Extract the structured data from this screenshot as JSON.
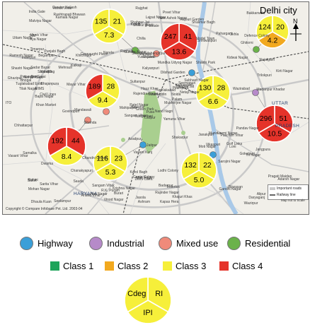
{
  "map": {
    "city_label": "Delhi city",
    "north_label": "N",
    "copyright": "Copyright © Compare Infobase Pvt. Ltd. 2003-04",
    "legend_important_roads": "Important roads",
    "legend_railway_line": "Railway line",
    "scale_note": "Map not to Scale",
    "places_big": [
      "HARYANA",
      "UTTAR",
      "PRADESH"
    ],
    "places": [
      "Ladpur",
      "Begampur",
      "Bawana",
      "Rohini",
      "Pitampura",
      "Shalimar Bagh",
      "Jahangirpuri",
      "Model Town",
      "Mukherjee Nagar",
      "Kamala Nagar",
      "Civil Lines",
      "Sangam Vihar",
      "Shastri Park",
      "Seelampur",
      "Shahdara",
      "Dilshad Garden",
      "Mohan Nagar",
      "Sauda",
      "Mundka",
      "Nangloi Jat",
      "Paschim Vihar",
      "Punjabi Bagh",
      "Shakur Basti",
      "Tilak Nagar",
      "Janakpuri",
      "Kirti Nagar",
      "Patel Nagar",
      "Karol Bagh",
      "Rajendra Nagar",
      "Connaught Place",
      "Paharganj",
      "Chandni Chowk",
      "Daryaganj",
      "Pragati Maidan",
      "Laxmi Nagar",
      "Preet Vihar",
      "Mayur Vihar",
      "Anand Vihar",
      "Ghazipur",
      "Noida",
      "Dhaula Kuan",
      "Delhi Cantt.",
      "Palam",
      "Dwarka",
      "Najafgarh",
      "Uttam Nagar",
      "Vikaspuri",
      "Chanakyapuri",
      "Rashtrapati Bhawan",
      "India Gate",
      "Lodhi Colony",
      "Defence Colony",
      "Lajpat Nagar",
      "Nehru Place",
      "Kalkaji",
      "Okhla",
      "Greater Kailash",
      "Hauz Khas",
      "Vasant Vihar",
      "Vasant Kunj",
      "R.K. Puram",
      "Munirka",
      "Saket",
      "Malviya Nagar",
      "Mehrauli",
      "Chhattarpur",
      "Sultanpur",
      "Badarpur",
      "Tughlakabad",
      "Sarita Vihar",
      "Jasola",
      "Madanpur Khadar",
      "Jaitpur",
      "Bijwasan",
      "Kapas Hera",
      "Shahpur Jat",
      "Sarojini Nagar",
      "Nizamuddin",
      "Jangpura",
      "Bhogal",
      "Ashram",
      "Sriniwaspuri",
      "Govindpuri",
      "Tuglakabad Extn.",
      "Sangam Vihar",
      "Kishangarh",
      "Ghitorni",
      "Aya Nagar",
      "Rajokri",
      "Mahipalpur",
      "Samalka",
      "Kanganheri",
      "Ranhola",
      "Bakkarwala",
      "Mundka Udyog Nagar",
      "Narela",
      "Alipur",
      "Burari",
      "Wazirabad",
      "Timarpur",
      "Khajuri Khas",
      "Loni",
      "Ghonda",
      "Yamuna Vihar",
      "Bhajanpura",
      "Gokulpuri",
      "Nand Nagri",
      "Seemapuri",
      "Vivek Vihar",
      "Krishna Nagar",
      "Gandhi Nagar",
      "Geeta Colony",
      "Kondli",
      "Trilokpuri",
      "Khichripur",
      "Patparganj",
      "Vinod Nagar",
      "Pandav Nagar",
      "New Ashok Nagar",
      "Chilla",
      "Kalyanpuri",
      "Mandawali",
      "Shakarpur",
      "IP Estate",
      "ITO",
      "Rajghat",
      "Sadar Bazar",
      "Azadpur",
      "Adarsh Nagar",
      "Ashok Vihar",
      "Wazirpur",
      "Tri Nagar",
      "Inderlok",
      "Shastri Nagar",
      "Rajouri Garden",
      "Subhash Nagar",
      "Hari Nagar",
      "Moti Nagar",
      "Ramesh Nagar",
      "Naraina",
      "Inderpuri",
      "Pusa",
      "Rajinder Nagar",
      "Ber Sarai",
      "JNU",
      "IIT",
      "Safdarjung",
      "AIIMS",
      "Green Park",
      "Yusuf Sarai",
      "Kidwai Nagar",
      "Netaji Nagar",
      "Moti Bagh",
      "Khan Market",
      "Sunder Nagar",
      "Golf Links",
      "Bapa Nagar"
    ]
  },
  "stations": [
    {
      "id": "pitampura",
      "type": "Residential",
      "rl": 21,
      "cdeg": 135,
      "ipi": 7.3,
      "ipi_text": "7.3"
    },
    {
      "id": "civil-lines",
      "type": "Mixed use",
      "rl": 41,
      "cdeg": 247,
      "ipi": 13.6,
      "ipi_text": "13.6"
    },
    {
      "id": "shahdara",
      "type": "Residential",
      "rl": 20,
      "cdeg": 124,
      "ipi": 4.2,
      "ipi_text": "4.2"
    },
    {
      "id": "punjabi-bagh",
      "type": "Mixed use",
      "rl": 28,
      "cdeg": 189,
      "ipi": 9.4,
      "ipi_text": "9.4"
    },
    {
      "id": "ito",
      "type": "Highway",
      "rl": 28,
      "cdeg": 130,
      "ipi": 6.6,
      "ipi_text": "6.6"
    },
    {
      "id": "anand-vihar",
      "type": "Industrial",
      "rl": 51,
      "cdeg": 296,
      "ipi": 10.5,
      "ipi_text": "10.5"
    },
    {
      "id": "janakpuri",
      "type": "Mixed use",
      "rl": 44,
      "cdeg": 192,
      "ipi": 8.4,
      "ipi_text": "8.4"
    },
    {
      "id": "dhaula-kuan",
      "type": "Highway",
      "rl": 23,
      "cdeg": 116,
      "ipi": 5.3,
      "ipi_text": "5.3"
    },
    {
      "id": "ashram",
      "type": "Highway",
      "rl": 22,
      "cdeg": 132,
      "ipi": 5.0,
      "ipi_text": "5.0"
    }
  ],
  "categories": [
    {
      "label": "Highway",
      "color": "#3b9fd8"
    },
    {
      "label": "Industrial",
      "color": "#b68ac9"
    },
    {
      "label": "Mixed use",
      "color": "#ef8a7a"
    },
    {
      "label": "Residential",
      "color": "#6bb24a"
    }
  ],
  "classes": [
    {
      "label": "Class 1",
      "color": "#1ea45a"
    },
    {
      "label": "Class 2",
      "color": "#f2a91f"
    },
    {
      "label": "Class 3",
      "color": "#f6ef3a"
    },
    {
      "label": "Class 4",
      "color": "#e5332a"
    }
  ],
  "key_pie": {
    "top_left": "Cdeg",
    "top_right": "RI",
    "bottom": "IPI"
  }
}
